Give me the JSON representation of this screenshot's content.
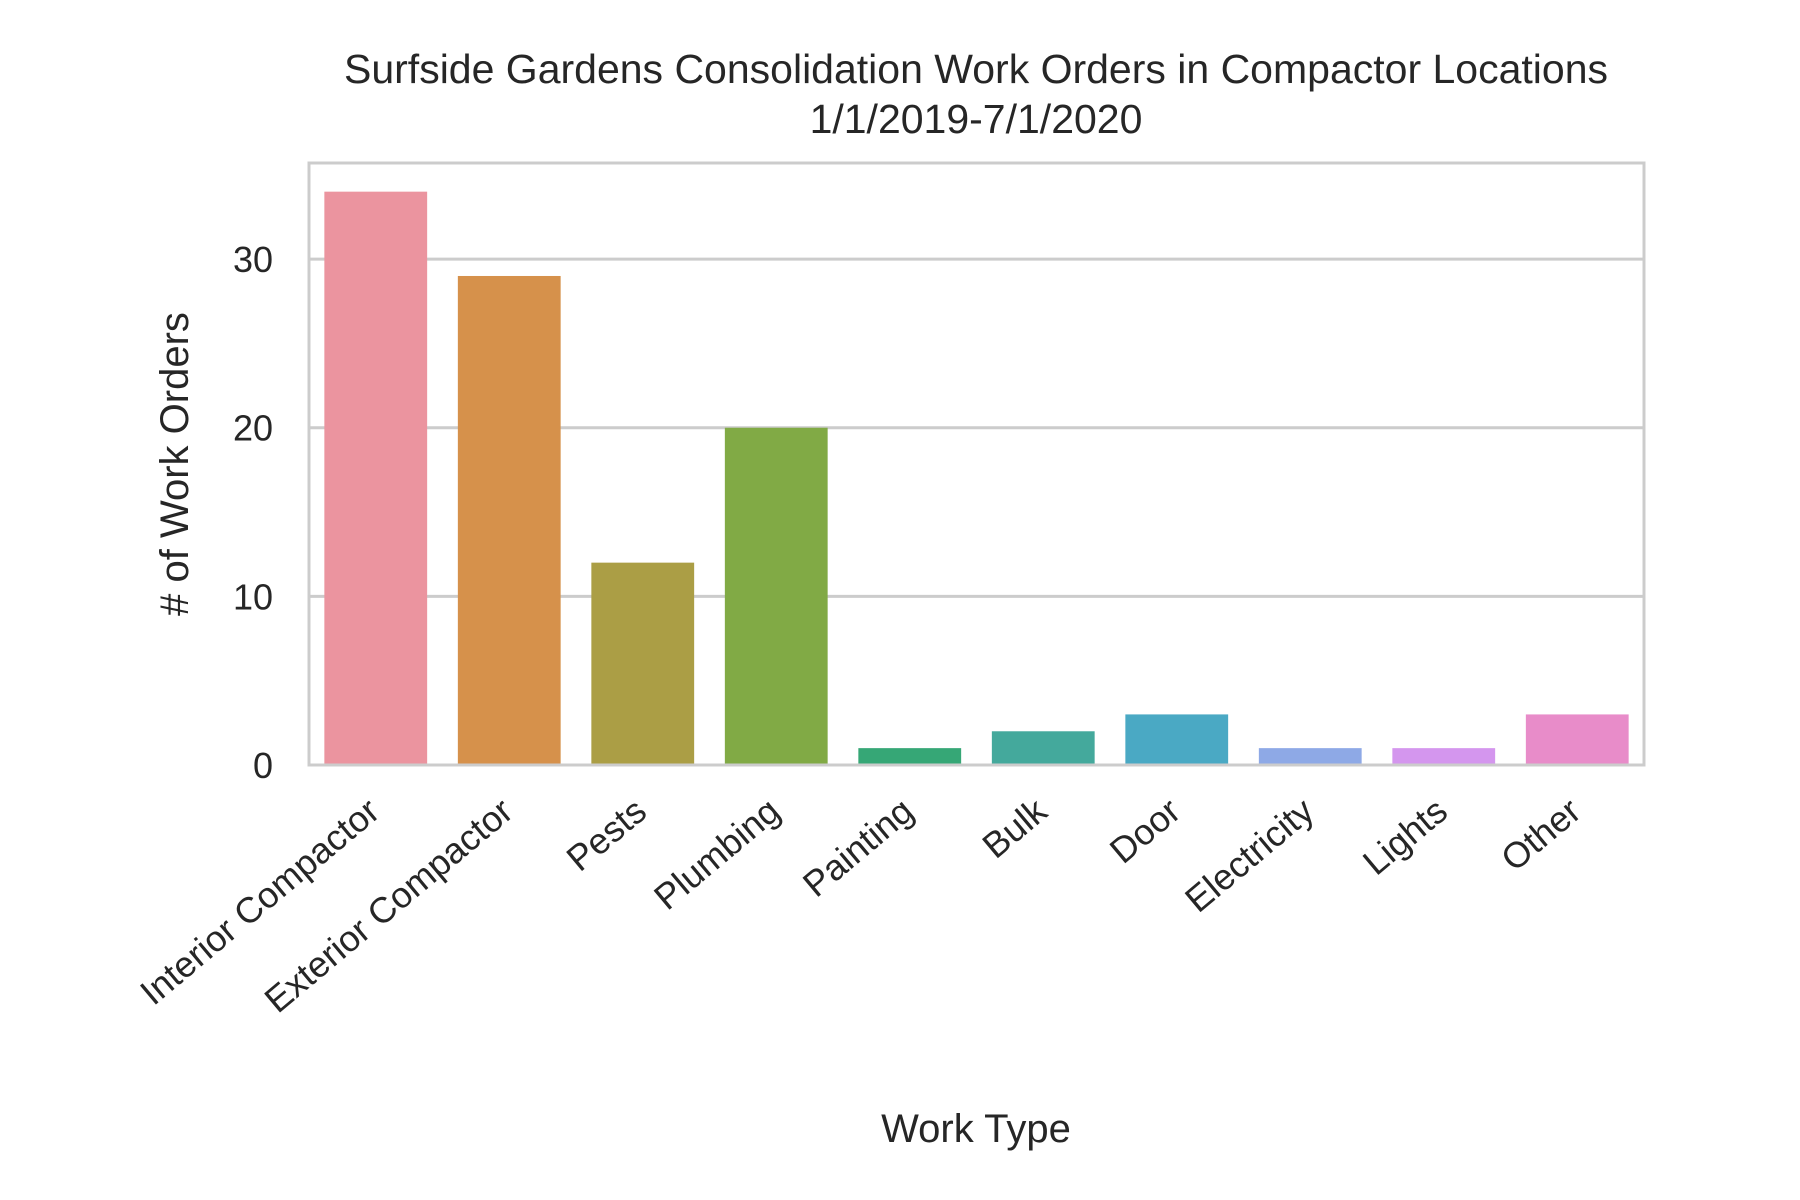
{
  "chart_data": {
    "type": "bar",
    "title_lines": [
      "Surfside Gardens Consolidation Work Orders in Compactor Locations",
      "1/1/2019-7/1/2020"
    ],
    "xlabel": "Work Type",
    "ylabel": "# of Work Orders",
    "categories": [
      "Interior Compactor",
      "Exterior Compactor",
      "Pests",
      "Plumbing",
      "Painting",
      "Bulk",
      "Door",
      "Electricity",
      "Lights",
      "Other"
    ],
    "values": [
      34,
      29,
      12,
      20,
      1,
      2,
      3,
      1,
      1,
      3
    ],
    "colors": [
      "#eb949f",
      "#d6914b",
      "#ab9e45",
      "#81aa45",
      "#36a776",
      "#44a99c",
      "#4aa9c4",
      "#8ea9e6",
      "#d496ee",
      "#e88cc9"
    ],
    "ylim": [
      0,
      35.7
    ],
    "yticks": [
      0,
      10,
      20,
      30
    ],
    "ytick_labels": [
      "0",
      "10",
      "20",
      "30"
    ],
    "grid": "y",
    "legend": "none"
  }
}
